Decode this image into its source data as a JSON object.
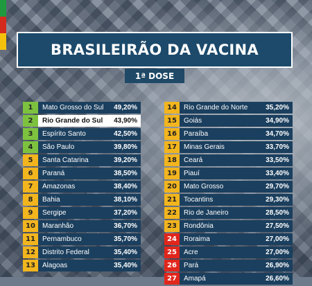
{
  "title": "BRASILEIRÃO DA VACINA",
  "subtitle": "1ª DOSE",
  "colors": {
    "banner": "#1d4a6b",
    "cell": "#1b3f5e",
    "rank_green": "#7dc23f",
    "rank_yellow": "#f2b51e",
    "rank_red": "#e1261c",
    "flag_green": "#1f9a3e",
    "flag_red": "#d52b1e",
    "flag_yellow": "#f4c20d"
  },
  "left_column": [
    {
      "rank": "1",
      "state": "Mato Grosso do Sul",
      "value": "49,20%",
      "zone": "green"
    },
    {
      "rank": "2",
      "state": "Rio Grande do Sul",
      "value": "43,90%",
      "zone": "green",
      "highlight": true
    },
    {
      "rank": "3",
      "state": "Espírito Santo",
      "value": "42,50%",
      "zone": "green"
    },
    {
      "rank": "4",
      "state": "São Paulo",
      "value": "39,80%",
      "zone": "green"
    },
    {
      "rank": "5",
      "state": "Santa Catarina",
      "value": "39,20%",
      "zone": "yellow"
    },
    {
      "rank": "6",
      "state": "Paraná",
      "value": "38,50%",
      "zone": "yellow"
    },
    {
      "rank": "7",
      "state": "Amazonas",
      "value": "38,40%",
      "zone": "yellow"
    },
    {
      "rank": "8",
      "state": "Bahia",
      "value": "38,10%",
      "zone": "yellow"
    },
    {
      "rank": "9",
      "state": "Sergipe",
      "value": "37,20%",
      "zone": "yellow"
    },
    {
      "rank": "10",
      "state": "Maranhão",
      "value": "36,70%",
      "zone": "yellow"
    },
    {
      "rank": "11",
      "state": "Pernambuco",
      "value": "35,70%",
      "zone": "yellow"
    },
    {
      "rank": "12",
      "state": "Distrito Federal",
      "value": "35,40%",
      "zone": "yellow"
    },
    {
      "rank": "13",
      "state": "Alagoas",
      "value": "35,40%",
      "zone": "yellow"
    }
  ],
  "right_column": [
    {
      "rank": "14",
      "state": "Rio Grande do Norte",
      "value": "35,20%",
      "zone": "yellow"
    },
    {
      "rank": "15",
      "state": "Goiás",
      "value": "34,90%",
      "zone": "yellow"
    },
    {
      "rank": "16",
      "state": "Paraíba",
      "value": "34,70%",
      "zone": "yellow"
    },
    {
      "rank": "17",
      "state": "Minas Gerais",
      "value": "33,70%",
      "zone": "yellow"
    },
    {
      "rank": "18",
      "state": "Ceará",
      "value": "33,50%",
      "zone": "yellow"
    },
    {
      "rank": "19",
      "state": "Piauí",
      "value": "33,40%",
      "zone": "yellow"
    },
    {
      "rank": "20",
      "state": "Mato Grosso",
      "value": "29,70%",
      "zone": "yellow"
    },
    {
      "rank": "21",
      "state": "Tocantins",
      "value": "29,30%",
      "zone": "yellow"
    },
    {
      "rank": "22",
      "state": "Rio de Janeiro",
      "value": "28,50%",
      "zone": "yellow"
    },
    {
      "rank": "23",
      "state": "Rondônia",
      "value": "27,50%",
      "zone": "yellow"
    },
    {
      "rank": "24",
      "state": "Roraima",
      "value": "27,00%",
      "zone": "red"
    },
    {
      "rank": "25",
      "state": "Acre",
      "value": "27,00%",
      "zone": "red"
    },
    {
      "rank": "26",
      "state": "Pará",
      "value": "26,90%",
      "zone": "red"
    },
    {
      "rank": "27",
      "state": "Amapá",
      "value": "26,60%",
      "zone": "red"
    }
  ]
}
